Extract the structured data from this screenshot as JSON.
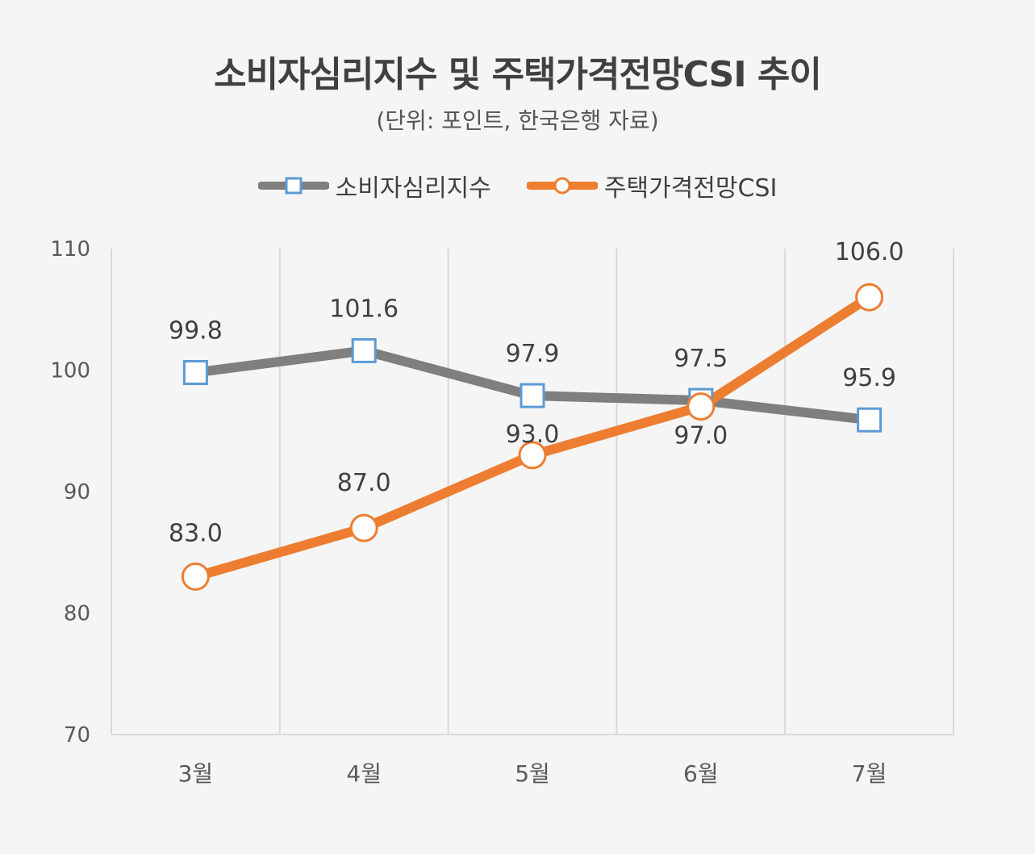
{
  "title": "소비자심리지수 및 주택가격전망CSI 추이",
  "subtitle": "(단위: 포인트, 한국은행 자료)",
  "colors": {
    "consumer": "#7f7f7f",
    "consumer_marker": "#5b9bd5",
    "housing": "#ed7d31",
    "grid": "#d9d9d9",
    "background": "#f5f5f5"
  },
  "chart_data": {
    "type": "line",
    "categories": [
      "3월",
      "4월",
      "5월",
      "6월",
      "7월"
    ],
    "ylim": [
      70,
      110
    ],
    "yticks": [
      70,
      80,
      90,
      100,
      110
    ],
    "series": [
      {
        "name": "소비자심리지수",
        "values": [
          99.8,
          101.6,
          97.9,
          97.5,
          95.9
        ],
        "labels": [
          "99.8",
          "101.6",
          "97.9",
          "97.5",
          "95.9"
        ],
        "marker": "square-icon"
      },
      {
        "name": "주택가격전망CSI",
        "values": [
          83.0,
          87.0,
          93.0,
          97.0,
          106.0
        ],
        "labels": [
          "83.0",
          "87.0",
          "93.0",
          "97.0",
          "106.0"
        ],
        "marker": "circle-icon"
      }
    ],
    "legend": "top",
    "grid": "vertical"
  }
}
